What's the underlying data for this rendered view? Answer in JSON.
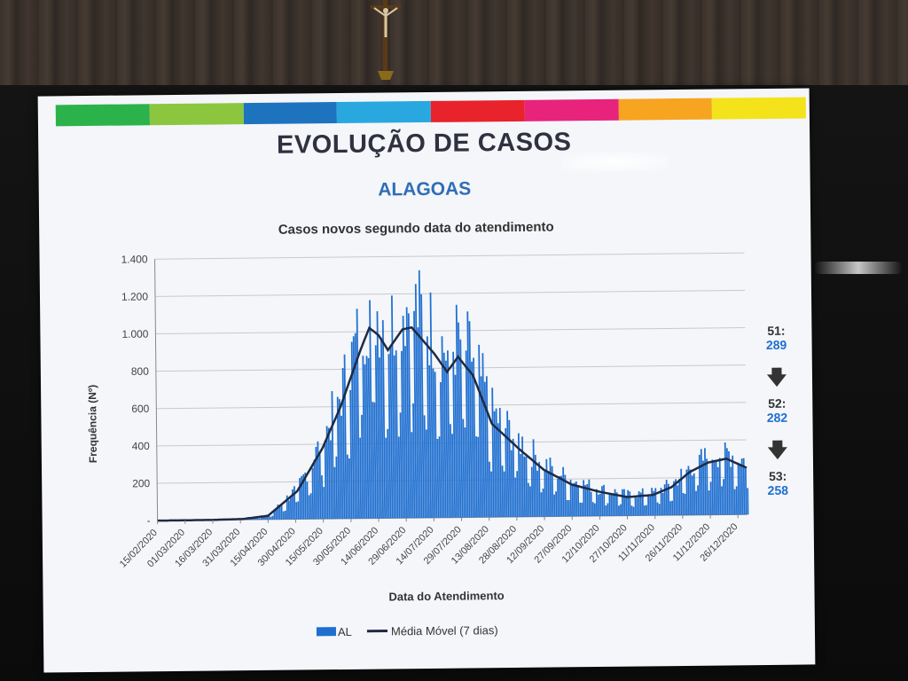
{
  "slide": {
    "title": "EVOLUÇÃO DE CASOS",
    "region": "ALAGOAS",
    "colors": [
      "#2cb24a",
      "#8cc63f",
      "#1e73be",
      "#29a8e0",
      "#e8232b",
      "#e8237c",
      "#f7a421",
      "#f4e21b"
    ]
  },
  "chart_data": {
    "type": "bar",
    "title": "Casos novos segundo data do atendimento",
    "xlabel": "Data do Atendimento",
    "ylabel": "Frequência (Nº)",
    "ylim": [
      0,
      1400
    ],
    "yticks": [
      "-",
      "200",
      "400",
      "600",
      "800",
      "1.000",
      "1.200",
      "1.400"
    ],
    "grid": true,
    "legend_position": "bottom",
    "x_tick_labels": [
      "15/02/2020",
      "01/03/2020",
      "16/03/2020",
      "31/03/2020",
      "15/04/2020",
      "30/04/2020",
      "15/05/2020",
      "30/05/2020",
      "14/06/2020",
      "29/06/2020",
      "14/07/2020",
      "29/07/2020",
      "13/08/2020",
      "28/08/2020",
      "12/09/2020",
      "27/09/2020",
      "12/10/2020",
      "27/10/2020",
      "11/11/2020",
      "26/11/2020",
      "11/12/2020",
      "26/12/2020"
    ],
    "moving_average_knots": [
      [
        "15/02/2020",
        0
      ],
      [
        "15/03/2020",
        1
      ],
      [
        "01/04/2020",
        4
      ],
      [
        "15/04/2020",
        20
      ],
      [
        "01/05/2020",
        150
      ],
      [
        "15/05/2020",
        380
      ],
      [
        "25/05/2020",
        600
      ],
      [
        "05/06/2020",
        900
      ],
      [
        "10/06/2020",
        1020
      ],
      [
        "15/06/2020",
        980
      ],
      [
        "20/06/2020",
        900
      ],
      [
        "28/06/2020",
        1010
      ],
      [
        "03/07/2020",
        1020
      ],
      [
        "15/07/2020",
        880
      ],
      [
        "22/07/2020",
        780
      ],
      [
        "28/07/2020",
        860
      ],
      [
        "05/08/2020",
        760
      ],
      [
        "15/08/2020",
        500
      ],
      [
        "30/08/2020",
        360
      ],
      [
        "12/09/2020",
        250
      ],
      [
        "27/09/2020",
        170
      ],
      [
        "12/10/2020",
        130
      ],
      [
        "27/10/2020",
        100
      ],
      [
        "10/11/2020",
        110
      ],
      [
        "20/11/2020",
        150
      ],
      [
        "30/11/2020",
        230
      ],
      [
        "10/12/2020",
        280
      ],
      [
        "20/12/2020",
        300
      ],
      [
        "31/12/2020",
        250
      ]
    ],
    "series": [
      {
        "name": "AL",
        "color": "#1f6fd0",
        "kind": "daily bars"
      },
      {
        "name": "Média Móvel (7 dias)",
        "color": "#1f2a44",
        "kind": "line"
      }
    ],
    "weeks": [
      {
        "label": "51:",
        "value": "289"
      },
      {
        "label": "52:",
        "value": "282"
      },
      {
        "label": "53:",
        "value": "258"
      }
    ]
  }
}
